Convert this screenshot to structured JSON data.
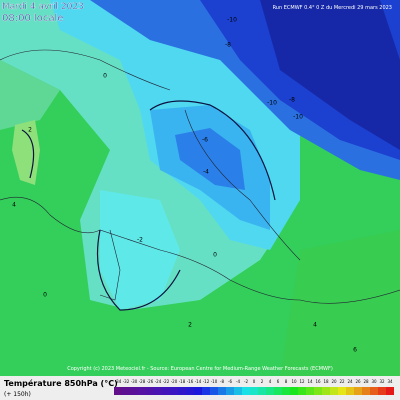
{
  "header": {
    "date": "Mardi 4 avril 2023",
    "time": "08:00 locale",
    "run": "Run ECMWF 0.4° 0 Z du Mercredi 29 mars 2023"
  },
  "copyright": "Copyright (c) 2023 Meteociel.fr - Source: European Centre for Medium-Range Weather Forecasts (ECMWF)",
  "legend": {
    "title": "Température 850hPa (°C)",
    "lead": "(+ 150h)",
    "ticks": [
      -34,
      -32,
      -30,
      -28,
      -26,
      -24,
      -22,
      -20,
      -18,
      -16,
      -14,
      -12,
      -10,
      -8,
      -6,
      -4,
      -2,
      0,
      2,
      4,
      6,
      8,
      10,
      12,
      14,
      16,
      18,
      20,
      22,
      24,
      26,
      28,
      30,
      32,
      34
    ]
  },
  "contour_labels": [
    -10,
    -8,
    -10,
    -8,
    -10,
    -6,
    -4,
    -2,
    0,
    0,
    2,
    4,
    2,
    0,
    4,
    6
  ]
}
